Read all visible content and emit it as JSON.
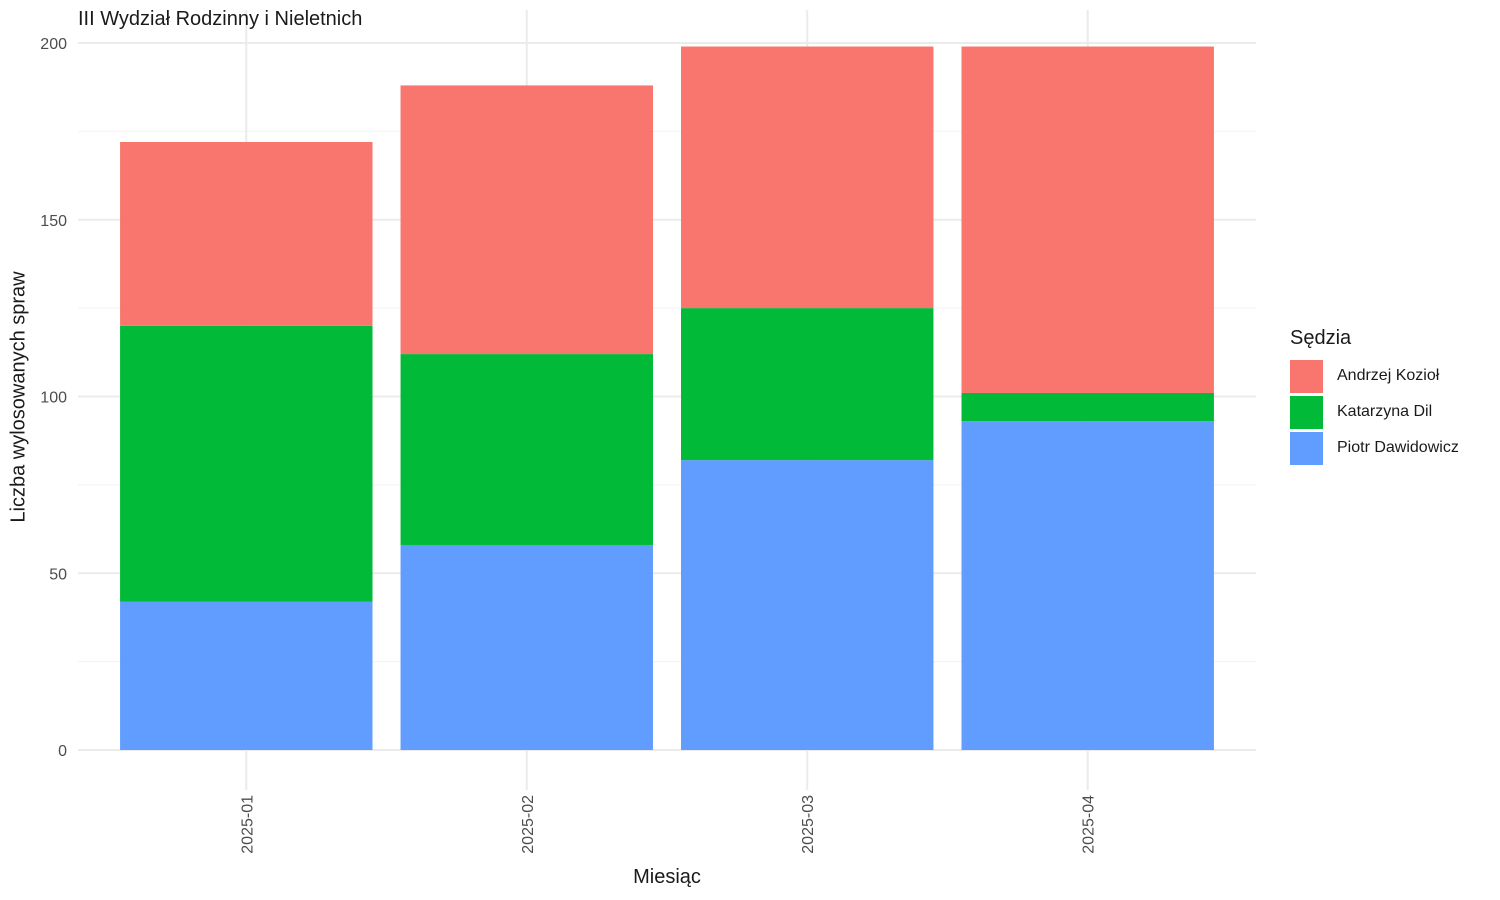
{
  "chart_data": {
    "type": "bar",
    "stacked": true,
    "title": "III Wydział Rodzinny i Nieletnich",
    "xlabel": "Miesiąc",
    "ylabel": "Liczba wylosowanych spraw",
    "categories": [
      "2025-01",
      "2025-02",
      "2025-03",
      "2025-04"
    ],
    "ylim": [
      0,
      200
    ],
    "yticks": [
      0,
      50,
      100,
      150,
      200
    ],
    "grid": true,
    "legend_title": "Sędzia",
    "legend_position": "right",
    "series": [
      {
        "name": "Piotr Dawidowicz",
        "color": "#619CFF",
        "values": [
          42,
          58,
          82,
          93
        ]
      },
      {
        "name": "Katarzyna Dil",
        "color": "#00BA38",
        "values": [
          78,
          54,
          43,
          8
        ]
      },
      {
        "name": "Andrzej Kozioł",
        "color": "#F8766D",
        "values": [
          52,
          76,
          74,
          98
        ]
      }
    ],
    "legend_order": [
      "Andrzej Kozioł",
      "Katarzyna Dil",
      "Piotr Dawidowicz"
    ]
  }
}
